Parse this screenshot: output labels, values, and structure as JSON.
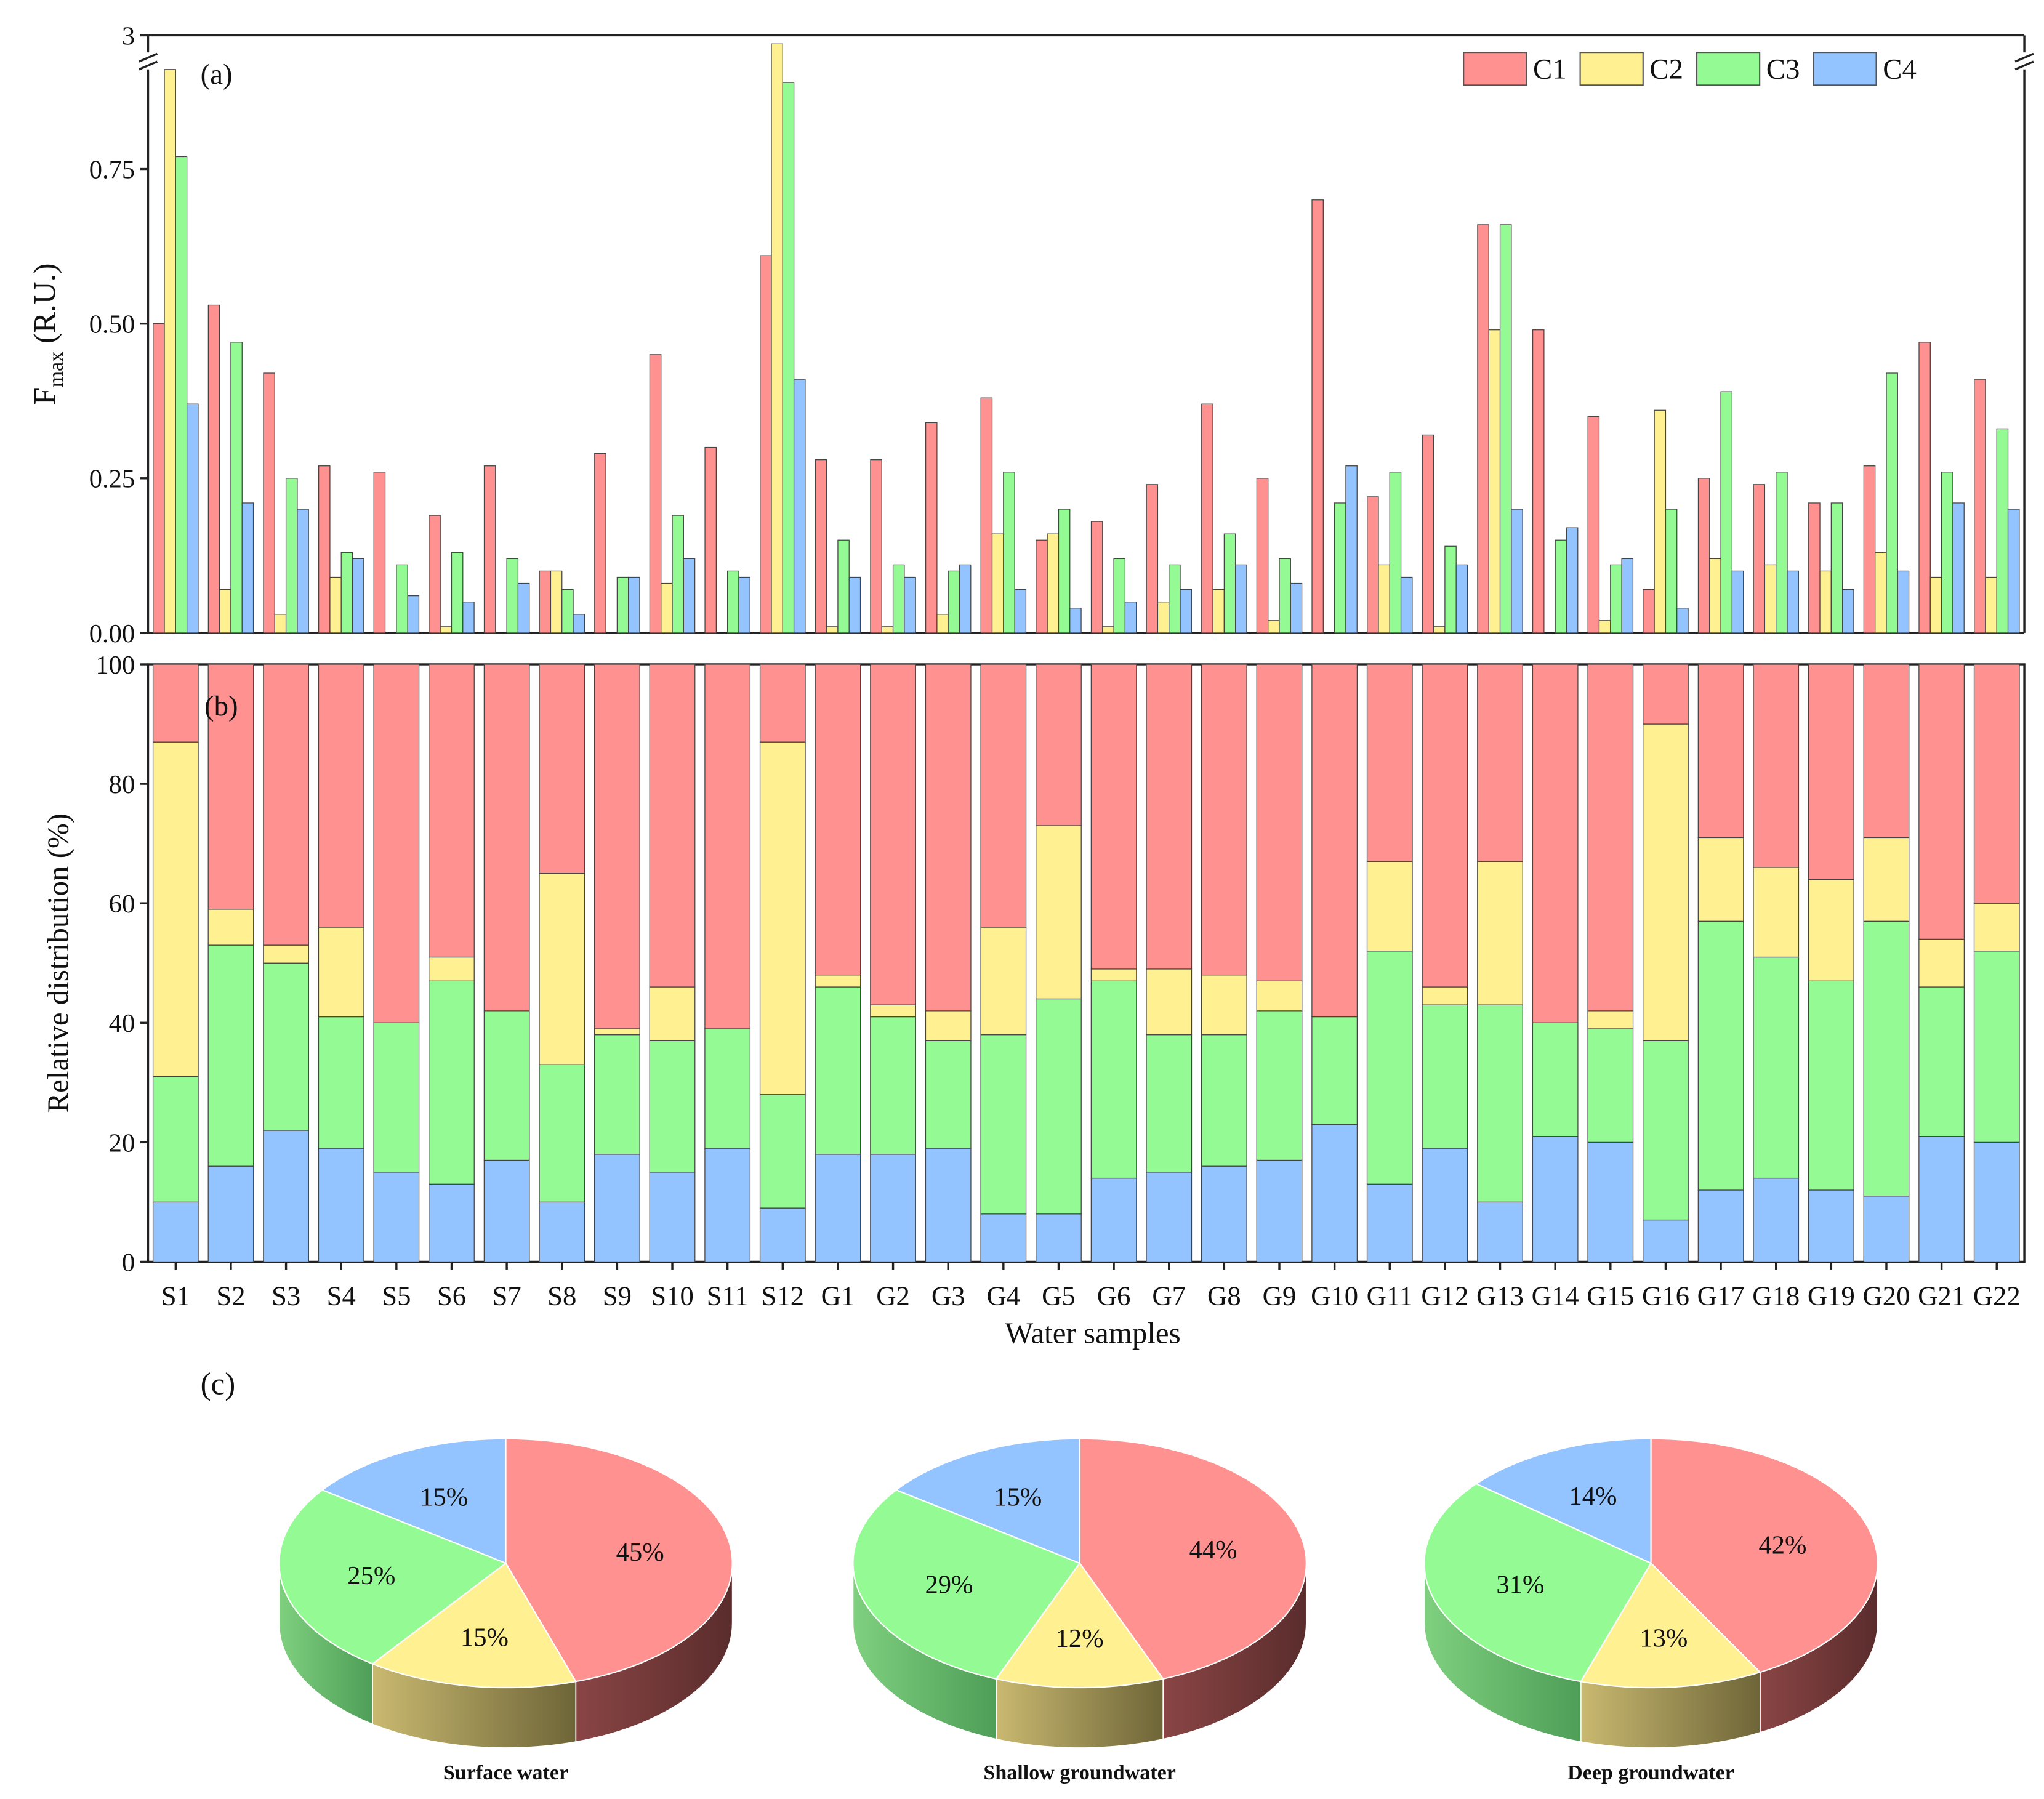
{
  "colors": {
    "C1": "#ff9191",
    "C2": "#fff191",
    "C3": "#94fb94",
    "C4": "#94c4ff"
  },
  "samples": [
    "S1",
    "S2",
    "S3",
    "S4",
    "S5",
    "S6",
    "S7",
    "S8",
    "S9",
    "S10",
    "S11",
    "S12",
    "G1",
    "G2",
    "G3",
    "G4",
    "G5",
    "G6",
    "G7",
    "G8",
    "G9",
    "G10",
    "G11",
    "G12",
    "G13",
    "G14",
    "G15",
    "G16",
    "G17",
    "G18",
    "G19",
    "G20",
    "G21",
    "G22"
  ],
  "chart_data": [
    {
      "type": "bar",
      "panel_label": "(a)",
      "ylabel_main": "F",
      "ylabel_sub": "max",
      "ylabel_rest": " (R.U.)",
      "yticks": [
        "0.00",
        "0.25",
        "0.50",
        "0.75",
        "3"
      ],
      "ylim": [
        0,
        3
      ],
      "axis_break": [
        0.9,
        2.5
      ],
      "legend": [
        "C1",
        "C2",
        "C3",
        "C4"
      ],
      "legend_position": "top-right",
      "series": [
        {
          "name": "C1",
          "values": [
            0.5,
            0.53,
            0.42,
            0.27,
            0.26,
            0.19,
            0.27,
            0.1,
            0.29,
            0.45,
            0.3,
            0.61,
            0.28,
            0.28,
            0.34,
            0.38,
            0.15,
            0.18,
            0.24,
            0.37,
            0.25,
            0.7,
            0.22,
            0.32,
            0.66,
            0.49,
            0.35,
            0.07,
            0.25,
            0.24,
            0.21,
            0.27,
            0.47,
            0.41
          ]
        },
        {
          "name": "C2",
          "values": [
            2.6,
            0.07,
            0.03,
            0.09,
            0,
            0.01,
            0,
            0.1,
            0,
            0.08,
            0,
            2.9,
            0.01,
            0.01,
            0.03,
            0.16,
            0.16,
            0.01,
            0.05,
            0.07,
            0.02,
            0,
            0.11,
            0.01,
            0.49,
            0,
            0.02,
            0.36,
            0.12,
            0.11,
            0.1,
            0.13,
            0.09,
            0.09
          ]
        },
        {
          "name": "C3",
          "values": [
            0.77,
            0.47,
            0.25,
            0.13,
            0.11,
            0.13,
            0.12,
            0.07,
            0.09,
            0.19,
            0.1,
            0.89,
            0.15,
            0.11,
            0.1,
            0.26,
            0.2,
            0.12,
            0.11,
            0.16,
            0.12,
            0.21,
            0.26,
            0.14,
            0.66,
            0.15,
            0.11,
            0.2,
            0.39,
            0.26,
            0.21,
            0.42,
            0.26,
            0.33
          ]
        },
        {
          "name": "C4",
          "values": [
            0.37,
            0.21,
            0.2,
            0.12,
            0.06,
            0.05,
            0.08,
            0.03,
            0.09,
            0.12,
            0.09,
            0.41,
            0.09,
            0.09,
            0.11,
            0.07,
            0.04,
            0.05,
            0.07,
            0.11,
            0.08,
            0.27,
            0.09,
            0.11,
            0.2,
            0.17,
            0.12,
            0.04,
            0.1,
            0.1,
            0.07,
            0.1,
            0.21,
            0.2
          ]
        }
      ]
    },
    {
      "type": "bar",
      "stacked": true,
      "panel_label": "(b)",
      "ylabel": "Relative distribution (%)",
      "xlabel": "Water samples",
      "yticks": [
        "0",
        "20",
        "40",
        "60",
        "80",
        "100"
      ],
      "ylim": [
        0,
        100
      ],
      "series": [
        {
          "name": "C4",
          "values": [
            10,
            16,
            22,
            19,
            15,
            13,
            17,
            10,
            18,
            15,
            19,
            9,
            18,
            18,
            19,
            8,
            8,
            14,
            15,
            16,
            17,
            23,
            13,
            19,
            10,
            21,
            20,
            7,
            12,
            14,
            12,
            11,
            21,
            20
          ]
        },
        {
          "name": "C3",
          "values": [
            21,
            37,
            28,
            22,
            25,
            34,
            25,
            23,
            20,
            22,
            20,
            19,
            28,
            23,
            18,
            30,
            36,
            33,
            23,
            22,
            25,
            18,
            39,
            24,
            33,
            19,
            19,
            30,
            45,
            37,
            35,
            46,
            25,
            32
          ]
        },
        {
          "name": "C2",
          "values": [
            56,
            6,
            3,
            15,
            0,
            4,
            0,
            32,
            1,
            9,
            0,
            59,
            2,
            2,
            5,
            18,
            29,
            2,
            11,
            10,
            5,
            0,
            15,
            3,
            24,
            0,
            3,
            53,
            14,
            15,
            17,
            14,
            8,
            8
          ]
        },
        {
          "name": "C1",
          "values": [
            13,
            41,
            47,
            44,
            60,
            49,
            58,
            35,
            61,
            54,
            61,
            13,
            52,
            57,
            58,
            44,
            27,
            51,
            51,
            52,
            53,
            59,
            33,
            54,
            33,
            60,
            58,
            10,
            29,
            34,
            36,
            29,
            46,
            40
          ]
        }
      ]
    },
    {
      "type": "pie",
      "panel_label": "(c)",
      "pies": [
        {
          "title": "Surface water",
          "slices": [
            {
              "name": "C1",
              "value": 45,
              "label": "45%"
            },
            {
              "name": "C2",
              "value": 15,
              "label": "15%"
            },
            {
              "name": "C3",
              "value": 25,
              "label": "25%"
            },
            {
              "name": "C4",
              "value": 15,
              "label": "15%"
            }
          ]
        },
        {
          "title": "Shallow groundwater",
          "slices": [
            {
              "name": "C1",
              "value": 44,
              "label": "44%"
            },
            {
              "name": "C2",
              "value": 12,
              "label": "12%"
            },
            {
              "name": "C3",
              "value": 29,
              "label": "29%"
            },
            {
              "name": "C4",
              "value": 15,
              "label": "15%"
            }
          ]
        },
        {
          "title": "Deep groundwater",
          "slices": [
            {
              "name": "C1",
              "value": 42,
              "label": "42%"
            },
            {
              "name": "C2",
              "value": 13,
              "label": "13%"
            },
            {
              "name": "C3",
              "value": 31,
              "label": "31%"
            },
            {
              "name": "C4",
              "value": 14,
              "label": "14%"
            }
          ]
        }
      ]
    }
  ]
}
